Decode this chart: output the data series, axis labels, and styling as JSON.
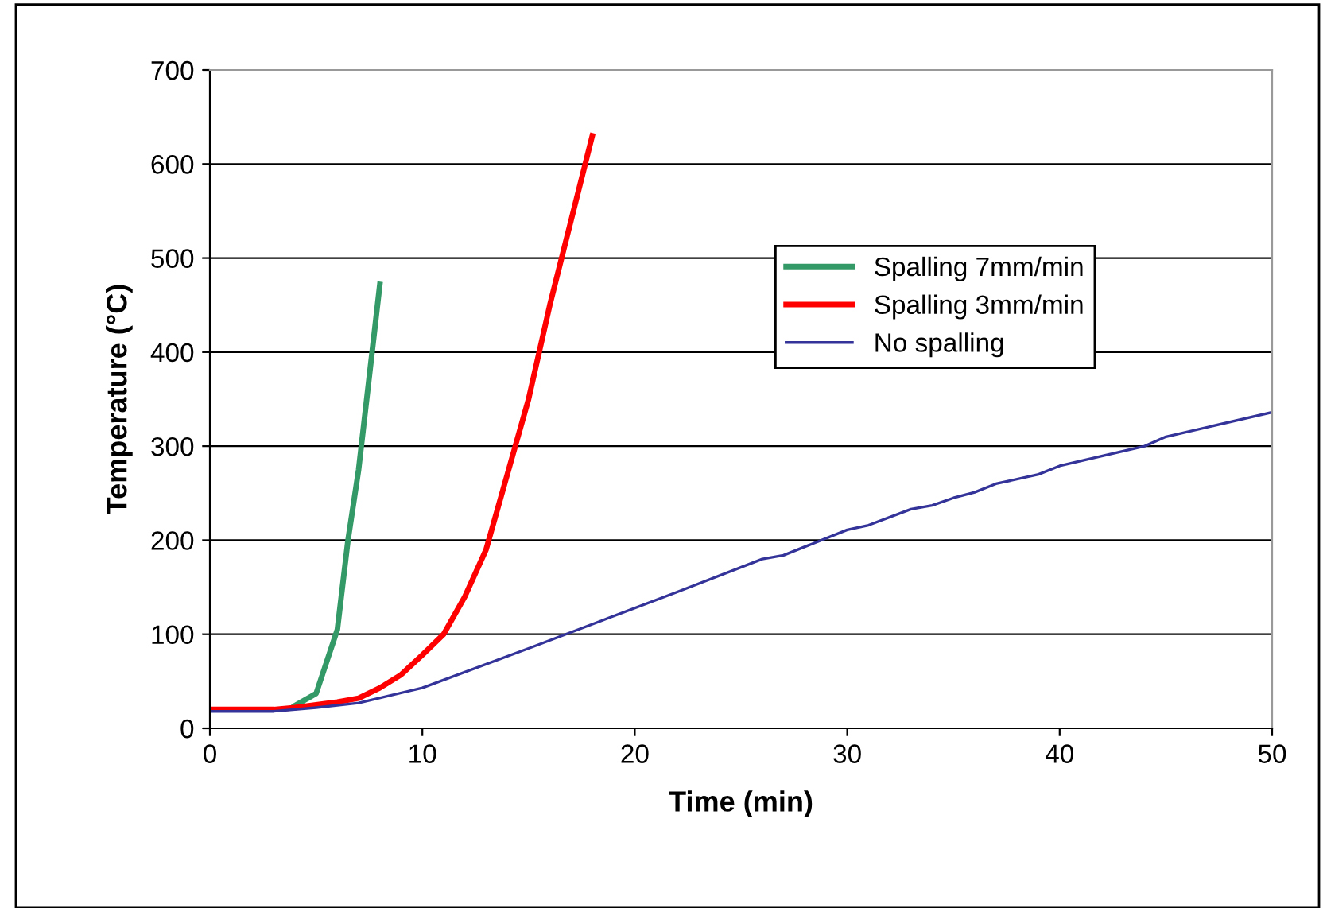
{
  "chart_data": {
    "type": "line",
    "xlabel": "Time (min)",
    "ylabel": "Temperature (°C)",
    "xlim": [
      0,
      50
    ],
    "xticks": [
      0,
      10,
      20,
      30,
      40,
      50
    ],
    "ylim": [
      0,
      700
    ],
    "yticks": [
      0,
      100,
      200,
      300,
      400,
      500,
      600,
      700
    ],
    "grid": "y",
    "legend": "right",
    "marker": "none",
    "line_style": "solid",
    "series": [
      {
        "name": "Spalling 7mm/min",
        "color": "#339966",
        "x": [
          4,
          5,
          6,
          6.5,
          7,
          8
        ],
        "values": [
          24,
          37,
          105,
          200,
          275,
          472
        ]
      },
      {
        "name": "Spalling 3mm/min",
        "color": "#ff0000",
        "x": [
          0,
          1,
          2,
          3,
          4,
          5,
          6,
          7,
          8,
          9,
          10,
          11,
          12,
          13,
          14,
          15,
          16,
          17,
          18
        ],
        "values": [
          20,
          20,
          20,
          20,
          22,
          25,
          28,
          32,
          43,
          57,
          78,
          100,
          140,
          190,
          270,
          350,
          450,
          540,
          630
        ]
      },
      {
        "name": "No spalling",
        "color": "#333399",
        "x": [
          0,
          3,
          5,
          7,
          10,
          15,
          18.5,
          22,
          26,
          27,
          30,
          31,
          33,
          34,
          35,
          36,
          37,
          39,
          40,
          44,
          45,
          50
        ],
        "values": [
          18,
          18,
          22,
          27,
          43,
          85,
          115,
          145,
          180,
          184,
          211,
          216,
          233,
          237,
          245,
          251,
          260,
          270,
          279,
          300,
          310,
          336
        ]
      }
    ]
  }
}
